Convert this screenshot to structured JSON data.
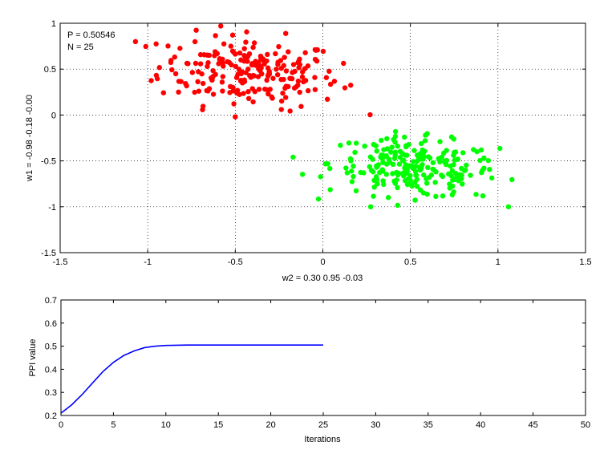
{
  "chart_data": [
    {
      "type": "scatter",
      "title": "",
      "xlabel": "w2 = 0.30  0.95  -0.03",
      "ylabel": "w1 = -0.98  -0.18  -0.00",
      "xlim": [
        -1.5,
        1.5
      ],
      "ylim": [
        -1.5,
        1
      ],
      "xticks": [
        "-1.5",
        "-1",
        "-0.5",
        "0",
        "0.5",
        "1",
        "1.5"
      ],
      "yticks": [
        "-1.5",
        "-1",
        "-0.5",
        "0",
        "0.5",
        "1"
      ],
      "grid": true,
      "annotations": [
        "P = 0.50546",
        "N = 25"
      ],
      "series": [
        {
          "color": "#ff0000",
          "x": [],
          "y": []
        },
        {
          "color": "#00ff00",
          "x": [],
          "y": []
        }
      ],
      "clusters": [
        {
          "color": "#ff0000",
          "count": 220,
          "x_range": [
            -1.07,
            0.27
          ],
          "y_range": [
            -0.02,
            0.98
          ],
          "center": [
            -0.42,
            0.47
          ]
        },
        {
          "color": "#00ff00",
          "count": 230,
          "x_range": [
            -0.17,
            1.08
          ],
          "y_range": [
            -1.0,
            -0.18
          ],
          "center": [
            0.52,
            -0.58
          ]
        }
      ]
    },
    {
      "type": "line",
      "title": "",
      "xlabel": "Iterations",
      "ylabel": "PPI value",
      "xlim": [
        0,
        50
      ],
      "ylim": [
        0.2,
        0.7
      ],
      "xticks": [
        "0",
        "5",
        "10",
        "15",
        "20",
        "25",
        "30",
        "35",
        "40",
        "45",
        "50"
      ],
      "yticks": [
        "0.2",
        "0.3",
        "0.4",
        "0.5",
        "0.6",
        "0.7"
      ],
      "grid": false,
      "series": [
        {
          "color": "#0000ff",
          "x": [
            0,
            1,
            2,
            3,
            4,
            5,
            6,
            7,
            8,
            9,
            10,
            11,
            12,
            13,
            14,
            15,
            16,
            17,
            18,
            19,
            20,
            21,
            22,
            23,
            24,
            25
          ],
          "y": [
            0.21,
            0.245,
            0.29,
            0.34,
            0.39,
            0.43,
            0.46,
            0.48,
            0.494,
            0.5,
            0.503,
            0.504,
            0.505,
            0.505,
            0.505,
            0.505,
            0.505,
            0.505,
            0.505,
            0.505,
            0.505,
            0.505,
            0.505,
            0.505,
            0.505,
            0.505
          ]
        }
      ]
    }
  ]
}
